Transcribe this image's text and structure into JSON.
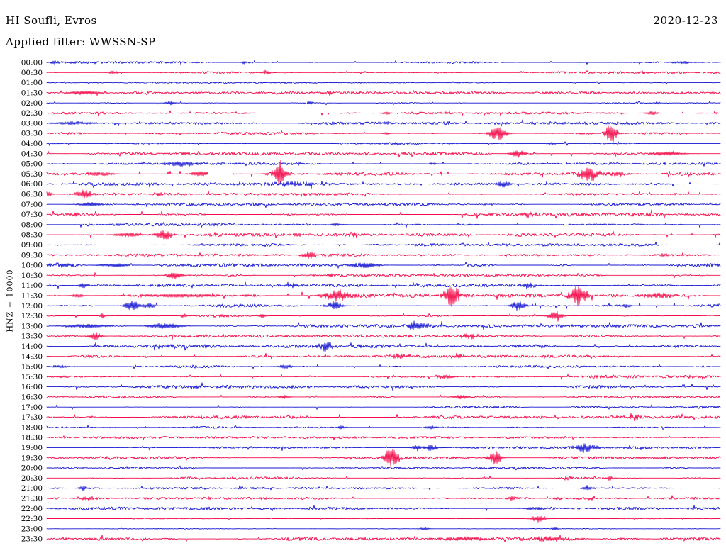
{
  "header": {
    "station_title": "HI Soufli, Evros",
    "date": "2020-12-23",
    "filter_label": "Applied filter: WWSSN-SP"
  },
  "axis": {
    "scale_label": "HNZ = 10000"
  },
  "colors": {
    "blue": "#1414d2",
    "red": "#f40848",
    "background": "#ffffff",
    "text": "#000000"
  },
  "chart_data": {
    "type": "line",
    "title": "HI Soufli, Evros",
    "subtitle": "Applied filter: WWSSN-SP",
    "date": "2020-12-23",
    "ylabel": "HNZ = 10000",
    "xlabel": "",
    "row_duration_minutes": 30,
    "rows_start": "00:00",
    "rows_end": "23:30",
    "legend": "alternating blue/red half-hour traces",
    "rows": [
      {
        "label": "00:00",
        "color": "blue",
        "noise": 0.9,
        "events": [
          {
            "t": 0.01,
            "a": 2,
            "w": 4
          },
          {
            "t": 0.294,
            "a": 2.5,
            "w": 3
          },
          {
            "t": 0.945,
            "a": 2.5,
            "w": 7
          }
        ]
      },
      {
        "label": "00:30",
        "color": "red",
        "noise": 0.9,
        "events": [
          {
            "t": 0.099,
            "a": 2.5,
            "w": 4
          },
          {
            "t": 0.325,
            "a": 5,
            "w": 3
          },
          {
            "t": 0.884,
            "a": 2,
            "w": 3
          }
        ]
      },
      {
        "label": "01:00",
        "color": "blue",
        "noise": 0.7,
        "events": []
      },
      {
        "label": "01:30",
        "color": "red",
        "noise": 1.0,
        "events": [
          {
            "t": 0.055,
            "a": 3,
            "w": 14
          },
          {
            "t": 0.42,
            "a": 3,
            "w": 3
          }
        ]
      },
      {
        "label": "02:00",
        "color": "blue",
        "noise": 0.8,
        "events": [
          {
            "t": 0.183,
            "a": 3,
            "w": 4
          },
          {
            "t": 0.39,
            "a": 2.5,
            "w": 3
          },
          {
            "t": 0.878,
            "a": 2,
            "w": 2
          },
          {
            "t": 0.907,
            "a": 2,
            "w": 2
          }
        ]
      },
      {
        "label": "02:30",
        "color": "red",
        "noise": 1.0,
        "events": [
          {
            "t": 0.504,
            "a": 2,
            "w": 4
          },
          {
            "t": 0.594,
            "a": 2,
            "w": 4
          },
          {
            "t": 0.898,
            "a": 2.5,
            "w": 5
          },
          {
            "t": 0.993,
            "a": 2,
            "w": 2
          }
        ]
      },
      {
        "label": "03:00",
        "color": "blue",
        "noise": 1.2,
        "events": [
          {
            "t": 0.04,
            "a": 2.5,
            "w": 18
          },
          {
            "t": 0.504,
            "a": 2,
            "w": 5
          },
          {
            "t": 0.594,
            "a": 2,
            "w": 4
          }
        ]
      },
      {
        "label": "03:30",
        "color": "red",
        "noise": 1.0,
        "events": [
          {
            "t": 0.504,
            "a": 2,
            "w": 3
          },
          {
            "t": 0.67,
            "a": 10,
            "w": 7
          },
          {
            "t": 0.838,
            "a": 14,
            "w": 5
          }
        ]
      },
      {
        "label": "04:00",
        "color": "blue",
        "noise": 0.9,
        "events": [
          {
            "t": 0.52,
            "a": 2,
            "w": 4
          },
          {
            "t": 0.75,
            "a": 2,
            "w": 4
          }
        ]
      },
      {
        "label": "04:30",
        "color": "red",
        "noise": 1.3,
        "events": [
          {
            "t": 0.7,
            "a": 6,
            "w": 6
          },
          {
            "t": 0.92,
            "a": 3,
            "w": 14
          }
        ]
      },
      {
        "label": "05:00",
        "color": "blue",
        "noise": 1.0,
        "events": [
          {
            "t": 0.138,
            "a": 2,
            "w": 2
          },
          {
            "t": 0.2,
            "a": 4,
            "w": 14
          },
          {
            "t": 0.373,
            "a": 2,
            "w": 3
          },
          {
            "t": 0.573,
            "a": 2,
            "w": 3
          }
        ]
      },
      {
        "label": "05:30",
        "color": "red",
        "noise": 1.3,
        "events": [
          {
            "t": 0.078,
            "a": 3,
            "w": 12
          },
          {
            "t": 0.227,
            "a": 4,
            "w": 8
          },
          {
            "t": 0.346,
            "a": 16,
            "w": 3
          },
          {
            "t": 0.344,
            "a": 6,
            "w": 9
          },
          {
            "t": 0.805,
            "a": 11,
            "w": 7
          },
          {
            "t": 0.845,
            "a": 4,
            "w": 6
          }
        ],
        "gaps": [
          {
            "from": 0.239,
            "to": 0.276
          }
        ]
      },
      {
        "label": "06:00",
        "color": "blue",
        "noise": 1.2,
        "events": [
          {
            "t": 0.37,
            "a": 3,
            "w": 22
          },
          {
            "t": 0.678,
            "a": 5,
            "w": 5
          }
        ]
      },
      {
        "label": "06:30",
        "color": "red",
        "noise": 1.2,
        "events": [
          {
            "t": 0.002,
            "a": 4,
            "w": 4
          },
          {
            "t": 0.055,
            "a": 6,
            "w": 7
          },
          {
            "t": 0.167,
            "a": 3,
            "w": 4
          }
        ]
      },
      {
        "label": "07:00",
        "color": "blue",
        "noise": 1.2,
        "events": [
          {
            "t": 0.065,
            "a": 3,
            "w": 10
          }
        ]
      },
      {
        "label": "07:30",
        "color": "red",
        "noise": 1.5,
        "events": [
          {
            "t": 0.715,
            "a": 3,
            "w": 5
          }
        ]
      },
      {
        "label": "08:00",
        "color": "blue",
        "noise": 1.3,
        "events": [
          {
            "t": 0.43,
            "a": 2,
            "w": 5
          }
        ]
      },
      {
        "label": "08:30",
        "color": "red",
        "noise": 1.4,
        "events": [
          {
            "t": 0.12,
            "a": 3,
            "w": 12
          },
          {
            "t": 0.175,
            "a": 7,
            "w": 7
          },
          {
            "t": 0.373,
            "a": 3,
            "w": 4
          },
          {
            "t": 0.457,
            "a": 3,
            "w": 4
          }
        ]
      },
      {
        "label": "09:00",
        "color": "blue",
        "noise": 1.1,
        "events": []
      },
      {
        "label": "09:30",
        "color": "red",
        "noise": 1.1,
        "events": [
          {
            "t": 0.39,
            "a": 5,
            "w": 6
          },
          {
            "t": 0.92,
            "a": 2.5,
            "w": 4
          }
        ]
      },
      {
        "label": "10:00",
        "color": "blue",
        "noise": 1.4,
        "events": [
          {
            "t": 0.02,
            "a": 3,
            "w": 14
          },
          {
            "t": 0.1,
            "a": 3,
            "w": 12
          },
          {
            "t": 0.47,
            "a": 4,
            "w": 12
          }
        ]
      },
      {
        "label": "10:30",
        "color": "red",
        "noise": 1.2,
        "events": [
          {
            "t": 0.19,
            "a": 6,
            "w": 6
          },
          {
            "t": 0.422,
            "a": 3,
            "w": 2
          }
        ]
      },
      {
        "label": "11:00",
        "color": "blue",
        "noise": 1.3,
        "events": [
          {
            "t": 0.054,
            "a": 3,
            "w": 5
          },
          {
            "t": 0.365,
            "a": 3,
            "w": 8
          },
          {
            "t": 0.715,
            "a": 4,
            "w": 5
          }
        ]
      },
      {
        "label": "11:30",
        "color": "red",
        "noise": 1.6,
        "events": [
          {
            "t": 0.046,
            "a": 3,
            "w": 5
          },
          {
            "t": 0.2,
            "a": 2.5,
            "w": 45
          },
          {
            "t": 0.43,
            "a": 8,
            "w": 12
          },
          {
            "t": 0.602,
            "a": 16,
            "w": 6
          },
          {
            "t": 0.79,
            "a": 16,
            "w": 7
          },
          {
            "t": 0.91,
            "a": 4,
            "w": 13
          }
        ]
      },
      {
        "label": "12:00",
        "color": "blue",
        "noise": 1.4,
        "events": [
          {
            "t": 0.127,
            "a": 8,
            "w": 6
          },
          {
            "t": 0.152,
            "a": 4,
            "w": 5
          },
          {
            "t": 0.427,
            "a": 6,
            "w": 6
          },
          {
            "t": 0.7,
            "a": 7,
            "w": 6
          },
          {
            "t": 0.86,
            "a": 3,
            "w": 4
          }
        ]
      },
      {
        "label": "12:30",
        "color": "red",
        "noise": 1.2,
        "events": [
          {
            "t": 0.083,
            "a": 4,
            "w": 2
          },
          {
            "t": 0.204,
            "a": 3,
            "w": 3
          },
          {
            "t": 0.32,
            "a": 3,
            "w": 3
          },
          {
            "t": 0.755,
            "a": 7,
            "w": 6
          }
        ]
      },
      {
        "label": "13:00",
        "color": "blue",
        "noise": 1.3,
        "events": [
          {
            "t": 0.06,
            "a": 3,
            "w": 18
          },
          {
            "t": 0.175,
            "a": 4,
            "w": 14
          },
          {
            "t": 0.545,
            "a": 6,
            "w": 6
          },
          {
            "t": 0.567,
            "a": 4,
            "w": 5
          }
        ]
      },
      {
        "label": "13:30",
        "color": "red",
        "noise": 1.2,
        "events": [
          {
            "t": 0.072,
            "a": 6,
            "w": 5
          },
          {
            "t": 0.63,
            "a": 3,
            "w": 10
          }
        ]
      },
      {
        "label": "14:00",
        "color": "blue",
        "noise": 1.5,
        "events": [
          {
            "t": 0.415,
            "a": 6,
            "w": 6
          }
        ]
      },
      {
        "label": "14:30",
        "color": "red",
        "noise": 1.1,
        "events": [
          {
            "t": 0.527,
            "a": 3,
            "w": 9
          },
          {
            "t": 0.61,
            "a": 3.5,
            "w": 5
          }
        ]
      },
      {
        "label": "15:00",
        "color": "blue",
        "noise": 1.1,
        "events": [
          {
            "t": 0.02,
            "a": 2.5,
            "w": 6
          },
          {
            "t": 0.355,
            "a": 3,
            "w": 6
          }
        ]
      },
      {
        "label": "15:30",
        "color": "red",
        "noise": 1.3,
        "events": [
          {
            "t": 0.59,
            "a": 3,
            "w": 9
          }
        ]
      },
      {
        "label": "16:00",
        "color": "blue",
        "noise": 1.4,
        "events": []
      },
      {
        "label": "16:30",
        "color": "red",
        "noise": 1.0,
        "events": [
          {
            "t": 0.352,
            "a": 3,
            "w": 4
          },
          {
            "t": 0.615,
            "a": 3,
            "w": 7
          }
        ]
      },
      {
        "label": "17:00",
        "color": "blue",
        "noise": 1.2,
        "events": []
      },
      {
        "label": "17:30",
        "color": "red",
        "noise": 1.3,
        "events": [
          {
            "t": 0.868,
            "a": 4,
            "w": 6
          }
        ]
      },
      {
        "label": "18:00",
        "color": "blue",
        "noise": 0.9,
        "events": [
          {
            "t": 0.437,
            "a": 2.5,
            "w": 4
          },
          {
            "t": 0.57,
            "a": 2.5,
            "w": 6
          }
        ]
      },
      {
        "label": "18:30",
        "color": "red",
        "noise": 0.9,
        "events": []
      },
      {
        "label": "19:00",
        "color": "blue",
        "noise": 1.1,
        "events": [
          {
            "t": 0.549,
            "a": 4,
            "w": 4
          },
          {
            "t": 0.571,
            "a": 5,
            "w": 5
          },
          {
            "t": 0.8,
            "a": 6,
            "w": 9
          }
        ]
      },
      {
        "label": "19:30",
        "color": "red",
        "noise": 1.1,
        "events": [
          {
            "t": 0.512,
            "a": 15,
            "w": 6
          },
          {
            "t": 0.665,
            "a": 11,
            "w": 5
          }
        ]
      },
      {
        "label": "20:00",
        "color": "blue",
        "noise": 0.9,
        "events": []
      },
      {
        "label": "20:30",
        "color": "red",
        "noise": 1.0,
        "events": [
          {
            "t": 0.773,
            "a": 3,
            "w": 3
          },
          {
            "t": 0.836,
            "a": 4,
            "w": 2
          }
        ]
      },
      {
        "label": "21:00",
        "color": "blue",
        "noise": 0.9,
        "events": [
          {
            "t": 0.054,
            "a": 3,
            "w": 4
          },
          {
            "t": 0.285,
            "a": 2.5,
            "w": 4
          },
          {
            "t": 0.804,
            "a": 3,
            "w": 5
          }
        ]
      },
      {
        "label": "21:30",
        "color": "red",
        "noise": 0.9,
        "events": [
          {
            "t": 0.06,
            "a": 2.5,
            "w": 7
          },
          {
            "t": 0.239,
            "a": 2,
            "w": 3
          },
          {
            "t": 0.321,
            "a": 2,
            "w": 3
          },
          {
            "t": 0.69,
            "a": 3,
            "w": 5
          },
          {
            "t": 0.759,
            "a": 2.5,
            "w": 3
          },
          {
            "t": 0.81,
            "a": 3,
            "w": 3
          },
          {
            "t": 0.964,
            "a": 2.5,
            "w": 3
          }
        ]
      },
      {
        "label": "22:00",
        "color": "blue",
        "noise": 1.3,
        "events": [
          {
            "t": 0.725,
            "a": 3,
            "w": 7
          }
        ]
      },
      {
        "label": "22:30",
        "color": "red",
        "noise": 0.35,
        "events": [
          {
            "t": 0.73,
            "a": 5,
            "w": 6
          }
        ]
      },
      {
        "label": "23:00",
        "color": "blue",
        "noise": 0.25,
        "events": [
          {
            "t": 0.561,
            "a": 2,
            "w": 4
          },
          {
            "t": 0.754,
            "a": 2,
            "w": 3
          }
        ]
      },
      {
        "label": "23:30",
        "color": "red",
        "noise": 1.4,
        "events": [
          {
            "t": 0.62,
            "a": 3,
            "w": 18
          },
          {
            "t": 0.75,
            "a": 3,
            "w": 22
          }
        ]
      }
    ]
  }
}
